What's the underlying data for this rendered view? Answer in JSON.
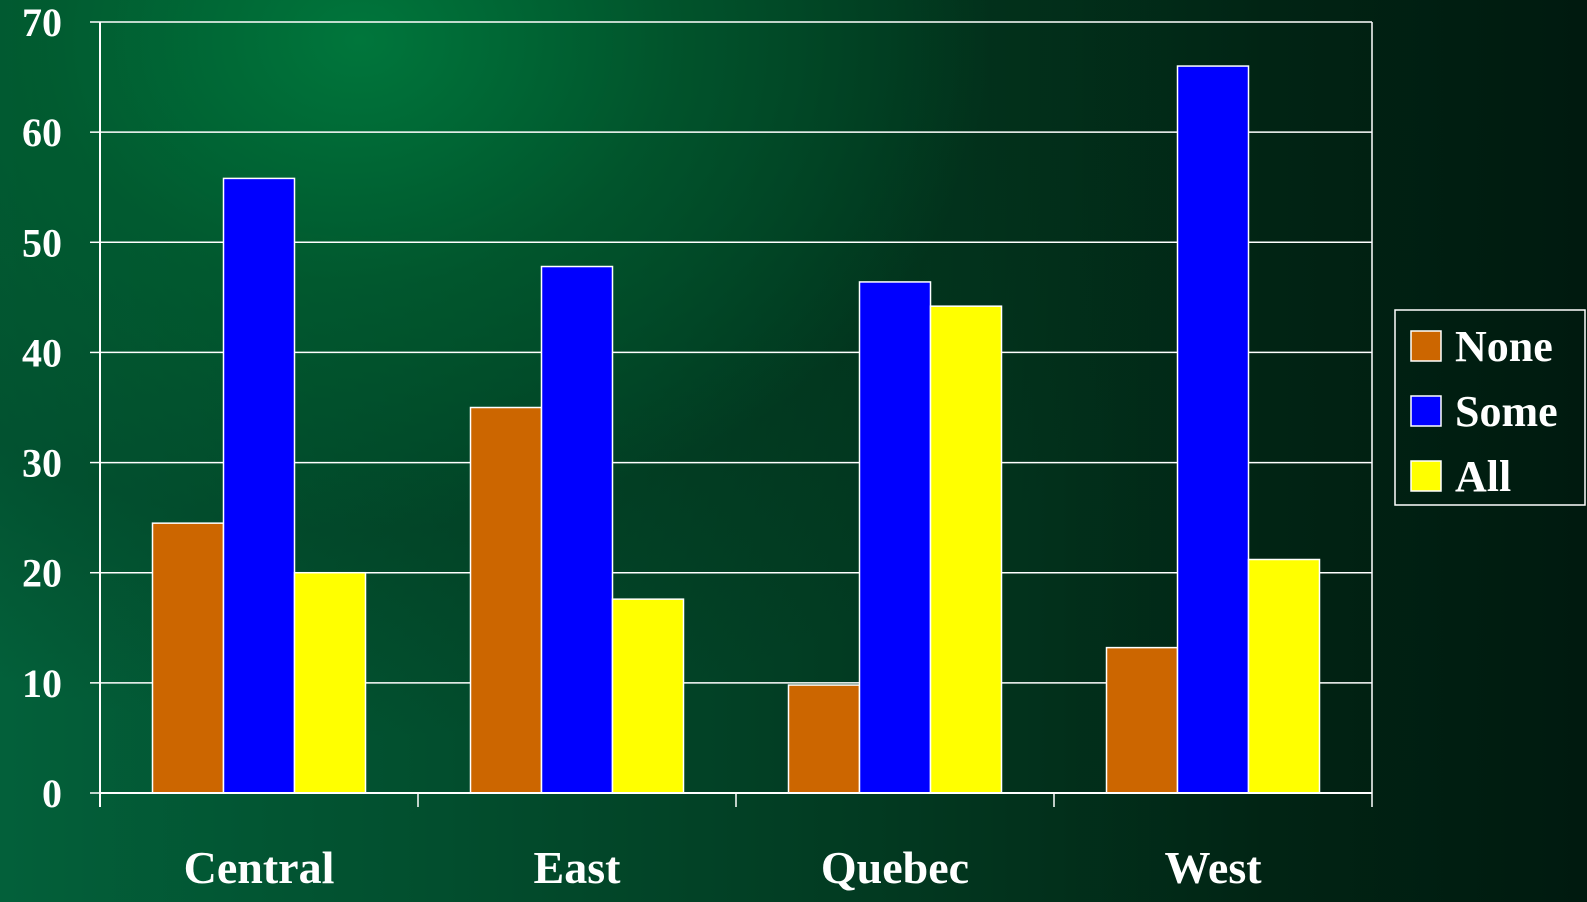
{
  "chart_data": {
    "type": "bar",
    "categories": [
      "Central",
      "East",
      "Quebec",
      "West"
    ],
    "series": [
      {
        "name": "None",
        "color": "#cc6600",
        "values": [
          24.5,
          35,
          9.8,
          13.2
        ]
      },
      {
        "name": "Some",
        "color": "#0000ff",
        "values": [
          55.8,
          47.8,
          46.4,
          66
        ]
      },
      {
        "name": "All",
        "color": "#ffff00",
        "values": [
          20,
          17.6,
          44.2,
          21.2
        ]
      }
    ],
    "yticks": [
      "0",
      "10",
      "20",
      "30",
      "40",
      "50",
      "60",
      "70"
    ],
    "ylim": [
      0,
      70
    ],
    "grid": true,
    "legend_position": "right"
  }
}
